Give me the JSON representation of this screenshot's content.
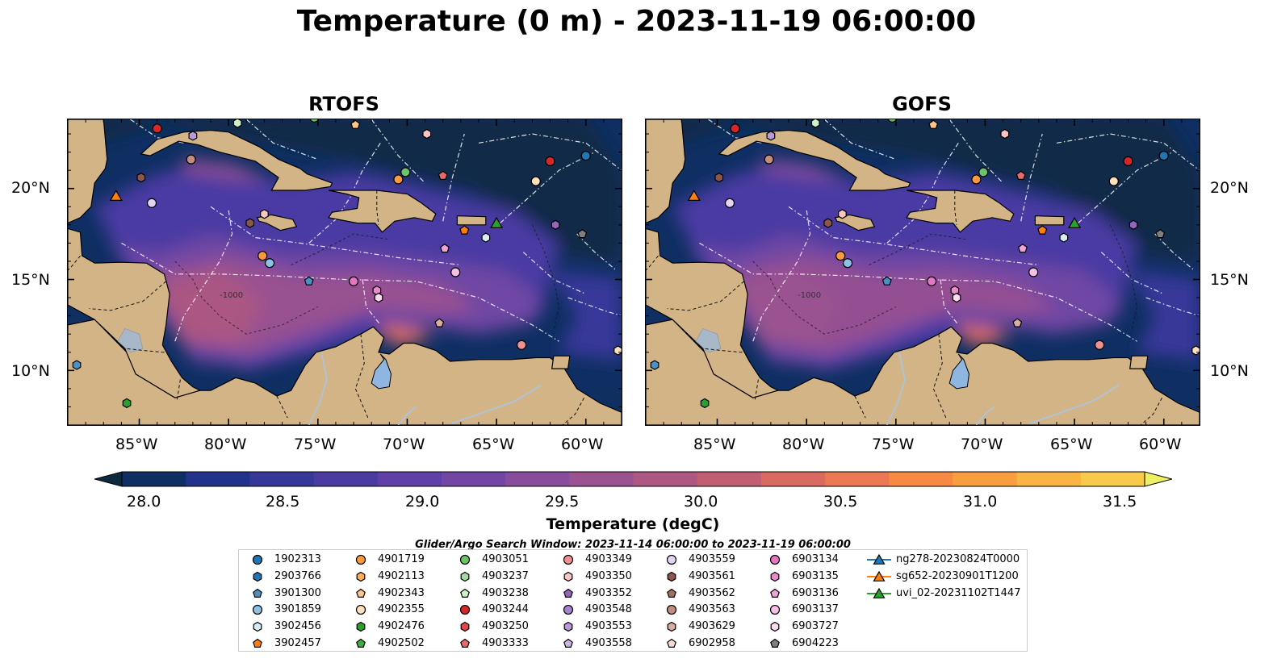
{
  "title": "Temperature (0 m) - 2023-11-19 06:00:00",
  "panels": [
    {
      "title": "RTOFS",
      "variant": "rtofs"
    },
    {
      "title": "GOFS",
      "variant": "gofs"
    }
  ],
  "axes": {
    "lon_ticks": [
      "85°W",
      "80°W",
      "75°W",
      "70°W",
      "65°W",
      "60°W"
    ],
    "lat_ticks": [
      "20°N",
      "15°N",
      "10°N"
    ],
    "lon_values": [
      -85,
      -80,
      -75,
      -70,
      -65,
      -60
    ],
    "lat_values": [
      20,
      15,
      10
    ],
    "lon_range": [
      -89,
      -58
    ],
    "lat_range": [
      7,
      23.8
    ]
  },
  "contour_label": "-1000",
  "colorbar": {
    "label": "Temperature (degC)",
    "ticks": [
      "28.0",
      "28.5",
      "29.0",
      "29.5",
      "30.0",
      "30.5",
      "31.0",
      "31.5"
    ],
    "range": [
      28.0,
      31.5
    ],
    "extend": "both",
    "colors": [
      "#0b2a3d",
      "#0f2f63",
      "#22318c",
      "#37379a",
      "#4a3ba3",
      "#5e40a6",
      "#7247a4",
      "#874c9c",
      "#9a5290",
      "#ad5882",
      "#c25e73",
      "#d86a62",
      "#ea7852",
      "#f68a45",
      "#f99e3f",
      "#f9b443",
      "#f7ca4c",
      "#eef061"
    ]
  },
  "search_window": "Glider/Argo Search Window: 2023-11-14 06:00:00 to 2023-11-19 06:00:00",
  "legend": [
    {
      "label": "1902313",
      "marker": "circle",
      "color": "#1f77b4"
    },
    {
      "label": "2903766",
      "marker": "hexagon",
      "color": "#1f77b4"
    },
    {
      "label": "3901300",
      "marker": "pentagon",
      "color": "#4a90c2"
    },
    {
      "label": "3901859",
      "marker": "circle",
      "color": "#8ec1e6"
    },
    {
      "label": "3902456",
      "marker": "hexagon",
      "color": "#d6ecf7"
    },
    {
      "label": "3902457",
      "marker": "pentagon",
      "color": "#ff7f0e"
    },
    {
      "label": "4901719",
      "marker": "circle",
      "color": "#ff9a3c"
    },
    {
      "label": "4902113",
      "marker": "hexagon",
      "color": "#ffad5c"
    },
    {
      "label": "4902343",
      "marker": "pentagon",
      "color": "#ffc48a"
    },
    {
      "label": "4902355",
      "marker": "circle",
      "color": "#ffe0bc"
    },
    {
      "label": "4902476",
      "marker": "hexagon",
      "color": "#2ca02c"
    },
    {
      "label": "4902502",
      "marker": "pentagon",
      "color": "#3cb043"
    },
    {
      "label": "4903051",
      "marker": "circle",
      "color": "#6cc36c"
    },
    {
      "label": "4903237",
      "marker": "hexagon",
      "color": "#a3dba0"
    },
    {
      "label": "4903238",
      "marker": "pentagon",
      "color": "#cdf2c8"
    },
    {
      "label": "4903244",
      "marker": "circle",
      "color": "#d62728"
    },
    {
      "label": "4903250",
      "marker": "hexagon",
      "color": "#e0484a"
    },
    {
      "label": "4903333",
      "marker": "pentagon",
      "color": "#ea6a6a"
    },
    {
      "label": "4903349",
      "marker": "circle",
      "color": "#f09090"
    },
    {
      "label": "4903350",
      "marker": "hexagon",
      "color": "#fac5c5"
    },
    {
      "label": "4903352",
      "marker": "pentagon",
      "color": "#9467bd"
    },
    {
      "label": "4903548",
      "marker": "circle",
      "color": "#a683cc"
    },
    {
      "label": "4903553",
      "marker": "hexagon",
      "color": "#b89ad8"
    },
    {
      "label": "4903558",
      "marker": "pentagon",
      "color": "#ccb5e6"
    },
    {
      "label": "4903559",
      "marker": "circle",
      "color": "#e3d4f3"
    },
    {
      "label": "4903561",
      "marker": "hexagon",
      "color": "#8c564b"
    },
    {
      "label": "4903562",
      "marker": "pentagon",
      "color": "#a66f62"
    },
    {
      "label": "4903563",
      "marker": "circle",
      "color": "#c08d7f"
    },
    {
      "label": "4903629",
      "marker": "hexagon",
      "color": "#d9ada2"
    },
    {
      "label": "6902958",
      "marker": "pentagon",
      "color": "#f7dcd3"
    },
    {
      "label": "6903134",
      "marker": "circle",
      "color": "#e377c2"
    },
    {
      "label": "6903135",
      "marker": "hexagon",
      "color": "#e98bcc"
    },
    {
      "label": "6903136",
      "marker": "pentagon",
      "color": "#f0a3d8"
    },
    {
      "label": "6903137",
      "marker": "circle",
      "color": "#f7bfe4"
    },
    {
      "label": "6903727",
      "marker": "hexagon",
      "color": "#fcdaf0"
    },
    {
      "label": "6904223",
      "marker": "pentagon",
      "color": "#7f7f7f"
    },
    {
      "label": "ng278-20230824T0000",
      "marker": "triangle",
      "color": "#1f77b4",
      "line": true
    },
    {
      "label": "sg652-20230901T1200",
      "marker": "triangle",
      "color": "#ff7f0e",
      "line": true
    },
    {
      "label": "uvi_02-20231102T1447",
      "marker": "triangle",
      "color": "#2ca02c",
      "line": true
    }
  ],
  "map_points": [
    {
      "lon": -84.0,
      "lat": 23.3,
      "marker": "circle",
      "color": "#d62728"
    },
    {
      "lon": -82.0,
      "lat": 22.9,
      "marker": "hexagon",
      "color": "#b89ad8"
    },
    {
      "lon": -79.5,
      "lat": 23.6,
      "marker": "hexagon",
      "color": "#cdf2c8"
    },
    {
      "lon": -75.2,
      "lat": 23.9,
      "marker": "circle",
      "color": "#6cc36c"
    },
    {
      "lon": -72.9,
      "lat": 23.5,
      "marker": "pentagon",
      "color": "#ffc48a"
    },
    {
      "lon": -68.9,
      "lat": 23.0,
      "marker": "hexagon",
      "color": "#fac5c5"
    },
    {
      "lon": -60.0,
      "lat": 21.8,
      "marker": "circle",
      "color": "#1f77b4"
    },
    {
      "lon": -62.0,
      "lat": 21.5,
      "marker": "circle",
      "color": "#d62728"
    },
    {
      "lon": -84.9,
      "lat": 20.6,
      "marker": "hexagon",
      "color": "#8c564b"
    },
    {
      "lon": -82.1,
      "lat": 21.6,
      "marker": "circle",
      "color": "#c08d7f"
    },
    {
      "lon": -70.1,
      "lat": 20.9,
      "marker": "circle",
      "color": "#6cc36c"
    },
    {
      "lon": -70.5,
      "lat": 20.5,
      "marker": "circle",
      "color": "#ff9a3c"
    },
    {
      "lon": -68.0,
      "lat": 20.7,
      "marker": "pentagon",
      "color": "#ea6a6a"
    },
    {
      "lon": -62.8,
      "lat": 20.4,
      "marker": "circle",
      "color": "#ffe0bc"
    },
    {
      "lon": -86.3,
      "lat": 19.6,
      "marker": "triangle",
      "color": "#ff7f0e"
    },
    {
      "lon": -84.3,
      "lat": 19.2,
      "marker": "circle",
      "color": "#e3d4f3"
    },
    {
      "lon": -78.8,
      "lat": 18.1,
      "marker": "hexagon",
      "color": "#8c564b"
    },
    {
      "lon": -78.0,
      "lat": 18.6,
      "marker": "hexagon",
      "color": "#fac5c5"
    },
    {
      "lon": -65.0,
      "lat": 18.1,
      "marker": "triangle",
      "color": "#2ca02c"
    },
    {
      "lon": -66.8,
      "lat": 17.7,
      "marker": "pentagon",
      "color": "#ff7f0e"
    },
    {
      "lon": -61.7,
      "lat": 18.0,
      "marker": "hexagon",
      "color": "#9467bd"
    },
    {
      "lon": -60.2,
      "lat": 17.5,
      "marker": "pentagon",
      "color": "#7f7f7f"
    },
    {
      "lon": -65.6,
      "lat": 17.3,
      "marker": "hexagon",
      "color": "#d6ecf7"
    },
    {
      "lon": -67.9,
      "lat": 16.7,
      "marker": "pentagon",
      "color": "#f0a3d8"
    },
    {
      "lon": -78.1,
      "lat": 16.3,
      "marker": "circle",
      "color": "#ff9a3c"
    },
    {
      "lon": -77.7,
      "lat": 15.9,
      "marker": "circle",
      "color": "#8ec1e6"
    },
    {
      "lon": -75.5,
      "lat": 14.9,
      "marker": "pentagon",
      "color": "#4a90c2"
    },
    {
      "lon": -73.0,
      "lat": 14.9,
      "marker": "circle",
      "color": "#e377c2"
    },
    {
      "lon": -71.7,
      "lat": 14.4,
      "marker": "hexagon",
      "color": "#e98bcc"
    },
    {
      "lon": -71.6,
      "lat": 14.0,
      "marker": "hexagon",
      "color": "#fcdaf0"
    },
    {
      "lon": -67.3,
      "lat": 15.4,
      "marker": "circle",
      "color": "#f7bfe4"
    },
    {
      "lon": -68.2,
      "lat": 12.6,
      "marker": "pentagon",
      "color": "#d9ada2"
    },
    {
      "lon": -63.6,
      "lat": 11.4,
      "marker": "circle",
      "color": "#f09090"
    },
    {
      "lon": -58.2,
      "lat": 11.1,
      "marker": "hexagon",
      "color": "#ffe0bc"
    },
    {
      "lon": -88.5,
      "lat": 10.3,
      "marker": "hexagon",
      "color": "#4a90c2"
    },
    {
      "lon": -85.7,
      "lat": 8.2,
      "marker": "hexagon",
      "color": "#2ca02c"
    }
  ]
}
